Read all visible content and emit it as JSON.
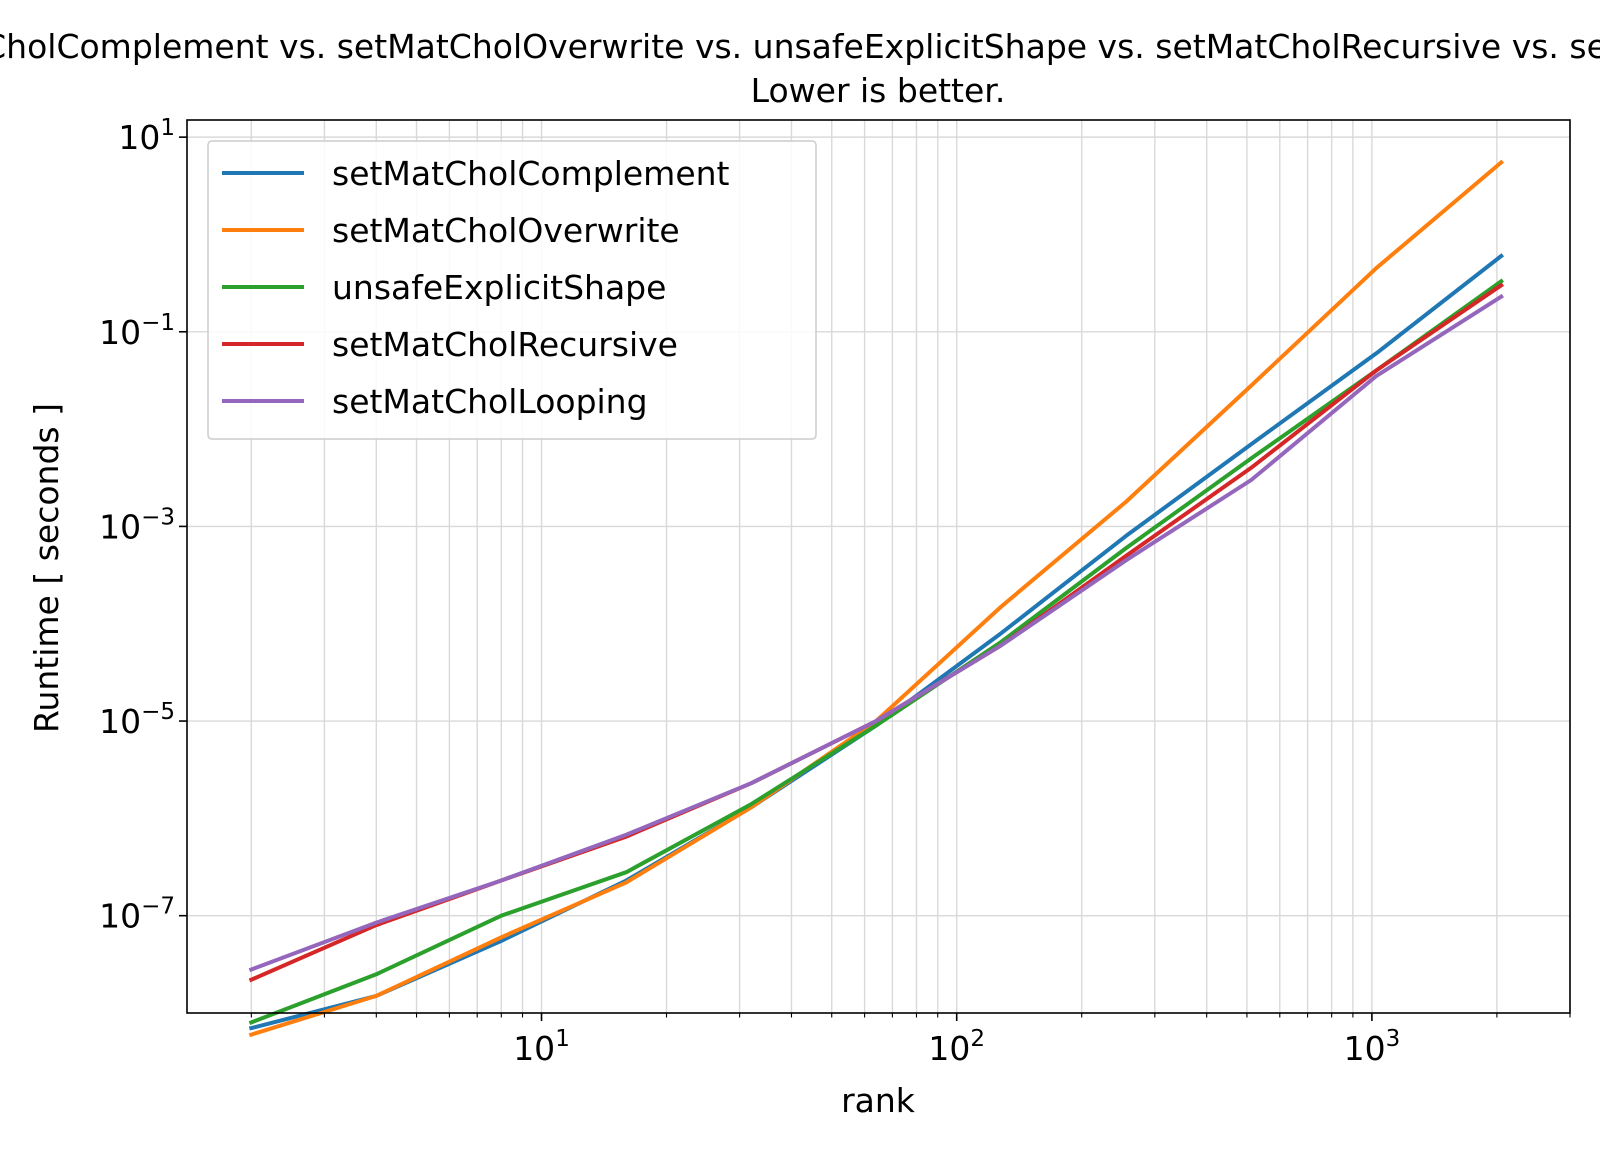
{
  "chart_data": {
    "type": "line",
    "title": "setMatCholComplement vs. setMatCholOverwrite vs. unsafeExplicitShape vs. setMatCholRecursive vs. setMatCholLooping",
    "subtitle": "Lower is better.",
    "xlabel": "rank",
    "ylabel": "Runtime [ seconds ]",
    "xscale": "log",
    "yscale": "log",
    "xlim": [
      1.4,
      3000
    ],
    "ylim": [
      1e-08,
      15
    ],
    "grid": true,
    "legend_position": "top-left",
    "x_ticks": [
      {
        "value": 10,
        "base": "10",
        "exp": "1"
      },
      {
        "value": 100,
        "base": "10",
        "exp": "2"
      },
      {
        "value": 1000,
        "base": "10",
        "exp": "3"
      }
    ],
    "y_ticks": [
      {
        "value": 1e-07,
        "base": "10",
        "exp": "−7"
      },
      {
        "value": 1e-05,
        "base": "10",
        "exp": "−5"
      },
      {
        "value": 0.001,
        "base": "10",
        "exp": "−3"
      },
      {
        "value": 0.1,
        "base": "10",
        "exp": "−1"
      },
      {
        "value": 10,
        "base": "10",
        "exp": "1"
      }
    ],
    "x": [
      2,
      4,
      8,
      16,
      32,
      64,
      128,
      256,
      512,
      1024,
      2048
    ],
    "series": [
      {
        "name": "setMatCholComplement",
        "color": "#1f77b4",
        "values": [
          7e-09,
          1.5e-08,
          5.5e-08,
          2.3e-07,
          1.3e-06,
          9e-06,
          8e-05,
          0.0008,
          0.007,
          0.06,
          0.6
        ]
      },
      {
        "name": "setMatCholOverwrite",
        "color": "#ff7f0e",
        "values": [
          6e-09,
          1.5e-08,
          6e-08,
          2.2e-07,
          1.3e-06,
          1e-05,
          0.00015,
          0.0018,
          0.028,
          0.45,
          5.5
        ]
      },
      {
        "name": "unsafeExplicitShape",
        "color": "#2ca02c",
        "values": [
          8e-09,
          2.5e-08,
          1e-07,
          2.8e-07,
          1.4e-06,
          9e-06,
          6.5e-05,
          0.0006,
          0.005,
          0.04,
          0.33
        ]
      },
      {
        "name": "setMatCholRecursive",
        "color": "#d62728",
        "values": [
          2.2e-08,
          8e-08,
          2.3e-07,
          6.5e-07,
          2.3e-06,
          1e-05,
          6e-05,
          0.0005,
          0.004,
          0.04,
          0.3
        ]
      },
      {
        "name": "setMatCholLooping",
        "color": "#9467bd",
        "values": [
          2.8e-08,
          8.5e-08,
          2.3e-07,
          6.8e-07,
          2.3e-06,
          1e-05,
          6e-05,
          0.00045,
          0.003,
          0.035,
          0.23
        ]
      }
    ]
  }
}
